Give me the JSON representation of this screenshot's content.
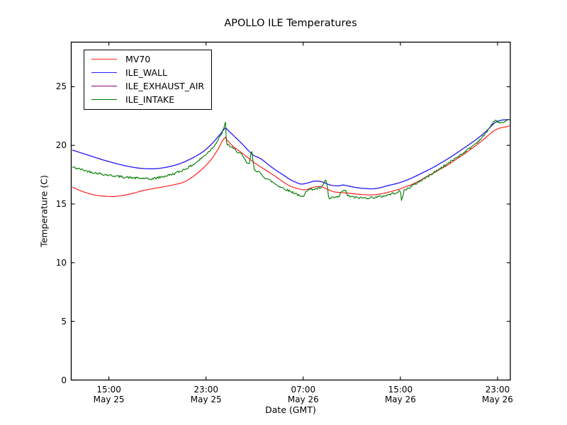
{
  "figure": {
    "background": "#ffffff",
    "frame_color": "#000000"
  },
  "chart_data": {
    "type": "line",
    "title": "APOLLO ILE Temperatures",
    "xlabel": "Date (GMT)",
    "ylabel": "Temperature (C)",
    "x_reference": "hours after May 25 12:00 GMT",
    "xlim_hours": [
      -0.1,
      36.05
    ],
    "ylim": [
      0,
      28.8
    ],
    "yticks": [
      0,
      5,
      10,
      15,
      20,
      25
    ],
    "xticks": [
      {
        "t": 3,
        "time": "15:00",
        "date": "May 25"
      },
      {
        "t": 11,
        "time": "23:00",
        "date": "May 25"
      },
      {
        "t": 19,
        "time": "07:00",
        "date": "May 26"
      },
      {
        "t": 27,
        "time": "15:00",
        "date": "May 26"
      },
      {
        "t": 35,
        "time": "23:00",
        "date": "May 26"
      }
    ],
    "grid": false,
    "legend_position": "upper left",
    "draw_order": [
      "ILE_EXHAUST_AIR",
      "MV70",
      "ILE_WALL",
      "ILE_INTAKE"
    ],
    "series": [
      {
        "name": "MV70",
        "color": "#ff2020",
        "noise": 0,
        "smooth": true,
        "points": [
          [
            0,
            16.45
          ],
          [
            0.7,
            16.12
          ],
          [
            1.4,
            15.88
          ],
          [
            2,
            15.74
          ],
          [
            2.6,
            15.67
          ],
          [
            3.2,
            15.64
          ],
          [
            3.8,
            15.68
          ],
          [
            4.4,
            15.78
          ],
          [
            5,
            15.92
          ],
          [
            5.7,
            16.12
          ],
          [
            6.4,
            16.27
          ],
          [
            7.1,
            16.4
          ],
          [
            7.8,
            16.53
          ],
          [
            8.5,
            16.68
          ],
          [
            9.2,
            16.88
          ],
          [
            9.8,
            17.25
          ],
          [
            10.4,
            17.72
          ],
          [
            11,
            18.3
          ],
          [
            11.5,
            18.9
          ],
          [
            12,
            19.7
          ],
          [
            12.3,
            20.3
          ],
          [
            12.6,
            20.7
          ],
          [
            12.72,
            20.45
          ],
          [
            13,
            20.15
          ],
          [
            13.3,
            19.85
          ],
          [
            13.9,
            19.4
          ],
          [
            14.45,
            18.95
          ],
          [
            15,
            18.5
          ],
          [
            15.6,
            18.1
          ],
          [
            16.2,
            17.7
          ],
          [
            16.8,
            17.3
          ],
          [
            17.4,
            16.85
          ],
          [
            17.9,
            16.55
          ],
          [
            18.6,
            16.3
          ],
          [
            19.2,
            16.22
          ],
          [
            19.9,
            16.45
          ],
          [
            20.5,
            16.48
          ],
          [
            21,
            16.25
          ],
          [
            21.5,
            16.05
          ],
          [
            22.1,
            15.98
          ],
          [
            22.7,
            15.93
          ],
          [
            23.3,
            15.86
          ],
          [
            24,
            15.8
          ],
          [
            24.7,
            15.78
          ],
          [
            25.3,
            15.85
          ],
          [
            25.9,
            15.98
          ],
          [
            26.7,
            16.2
          ],
          [
            27.3,
            16.42
          ],
          [
            27.9,
            16.65
          ],
          [
            28.5,
            16.95
          ],
          [
            29.1,
            17.3
          ],
          [
            29.7,
            17.63
          ],
          [
            30.3,
            17.98
          ],
          [
            30.9,
            18.33
          ],
          [
            31.5,
            18.75
          ],
          [
            32.1,
            19.15
          ],
          [
            32.7,
            19.6
          ],
          [
            33.3,
            20.05
          ],
          [
            33.9,
            20.55
          ],
          [
            34.4,
            21.0
          ],
          [
            34.8,
            21.3
          ],
          [
            35.2,
            21.48
          ],
          [
            35.6,
            21.56
          ],
          [
            36,
            21.65
          ]
        ]
      },
      {
        "name": "ILE_WALL",
        "color": "#2222ff",
        "noise": 0,
        "smooth": true,
        "points": [
          [
            0,
            19.6
          ],
          [
            0.6,
            19.4
          ],
          [
            1.2,
            19.2
          ],
          [
            1.8,
            19.0
          ],
          [
            2.4,
            18.8
          ],
          [
            3,
            18.62
          ],
          [
            3.6,
            18.45
          ],
          [
            4.2,
            18.3
          ],
          [
            4.8,
            18.17
          ],
          [
            5.4,
            18.07
          ],
          [
            6,
            18.02
          ],
          [
            6.6,
            18.0
          ],
          [
            7.2,
            18.05
          ],
          [
            7.8,
            18.15
          ],
          [
            8.4,
            18.3
          ],
          [
            9,
            18.5
          ],
          [
            9.6,
            18.78
          ],
          [
            10.2,
            19.1
          ],
          [
            10.8,
            19.5
          ],
          [
            11.3,
            19.95
          ],
          [
            11.8,
            20.5
          ],
          [
            12.2,
            21.0
          ],
          [
            12.6,
            21.5
          ],
          [
            12.75,
            21.35
          ],
          [
            13,
            21.1
          ],
          [
            13.3,
            20.8
          ],
          [
            13.9,
            20.2
          ],
          [
            14.45,
            19.6
          ],
          [
            14.9,
            19.15
          ],
          [
            15.2,
            19.02
          ],
          [
            15.6,
            18.8
          ],
          [
            16.2,
            18.3
          ],
          [
            16.8,
            17.85
          ],
          [
            17.4,
            17.45
          ],
          [
            17.9,
            17.1
          ],
          [
            18.4,
            16.85
          ],
          [
            18.85,
            16.7
          ],
          [
            19.3,
            16.78
          ],
          [
            19.9,
            16.95
          ],
          [
            20.4,
            16.93
          ],
          [
            20.9,
            16.75
          ],
          [
            21.3,
            16.6
          ],
          [
            21.9,
            16.55
          ],
          [
            22.3,
            16.62
          ],
          [
            22.8,
            16.52
          ],
          [
            23.4,
            16.4
          ],
          [
            24,
            16.33
          ],
          [
            24.7,
            16.3
          ],
          [
            25.3,
            16.38
          ],
          [
            25.9,
            16.55
          ],
          [
            26.7,
            16.75
          ],
          [
            27.3,
            16.95
          ],
          [
            27.9,
            17.2
          ],
          [
            28.5,
            17.5
          ],
          [
            29.1,
            17.8
          ],
          [
            29.7,
            18.12
          ],
          [
            30.3,
            18.48
          ],
          [
            30.9,
            18.85
          ],
          [
            31.5,
            19.25
          ],
          [
            32.1,
            19.68
          ],
          [
            32.7,
            20.1
          ],
          [
            33.3,
            20.55
          ],
          [
            33.9,
            21.05
          ],
          [
            34.4,
            21.55
          ],
          [
            34.8,
            21.95
          ],
          [
            35.2,
            22.12
          ],
          [
            35.6,
            22.18
          ],
          [
            36,
            22.2
          ]
        ]
      },
      {
        "name": "ILE_EXHAUST_AIR",
        "color": "#800080",
        "noise": 0,
        "smooth": true,
        "coincident_with": "ILE_WALL",
        "points": [
          [
            0,
            19.6
          ],
          [
            0.6,
            19.4
          ],
          [
            1.2,
            19.2
          ],
          [
            1.8,
            19.0
          ],
          [
            2.4,
            18.8
          ],
          [
            3,
            18.62
          ],
          [
            3.6,
            18.45
          ],
          [
            4.2,
            18.3
          ],
          [
            4.8,
            18.17
          ],
          [
            5.4,
            18.07
          ],
          [
            6,
            18.02
          ],
          [
            6.6,
            18.0
          ],
          [
            7.2,
            18.05
          ],
          [
            7.8,
            18.15
          ],
          [
            8.4,
            18.3
          ],
          [
            9,
            18.5
          ],
          [
            9.6,
            18.78
          ],
          [
            10.2,
            19.1
          ],
          [
            10.8,
            19.5
          ],
          [
            11.3,
            19.95
          ],
          [
            11.8,
            20.5
          ],
          [
            12.2,
            21.0
          ],
          [
            12.6,
            21.5
          ],
          [
            12.75,
            21.35
          ],
          [
            13,
            21.1
          ],
          [
            13.3,
            20.8
          ],
          [
            13.9,
            20.2
          ],
          [
            14.45,
            19.6
          ],
          [
            14.9,
            19.15
          ],
          [
            15.2,
            19.02
          ],
          [
            15.6,
            18.8
          ],
          [
            16.2,
            18.3
          ],
          [
            16.8,
            17.85
          ],
          [
            17.4,
            17.45
          ],
          [
            17.9,
            17.1
          ],
          [
            18.4,
            16.85
          ],
          [
            18.85,
            16.7
          ],
          [
            19.3,
            16.78
          ],
          [
            19.9,
            16.95
          ],
          [
            20.4,
            16.93
          ],
          [
            20.9,
            16.75
          ],
          [
            21.3,
            16.6
          ],
          [
            21.9,
            16.55
          ],
          [
            22.3,
            16.62
          ],
          [
            22.8,
            16.52
          ],
          [
            23.4,
            16.4
          ],
          [
            24,
            16.33
          ],
          [
            24.7,
            16.3
          ],
          [
            25.3,
            16.38
          ],
          [
            25.9,
            16.55
          ],
          [
            26.7,
            16.75
          ],
          [
            27.3,
            16.95
          ],
          [
            27.9,
            17.2
          ],
          [
            28.5,
            17.5
          ],
          [
            29.1,
            17.8
          ],
          [
            29.7,
            18.12
          ],
          [
            30.3,
            18.48
          ],
          [
            30.9,
            18.85
          ],
          [
            31.5,
            19.25
          ],
          [
            32.1,
            19.68
          ],
          [
            32.7,
            20.1
          ],
          [
            33.3,
            20.55
          ],
          [
            33.9,
            21.05
          ],
          [
            34.4,
            21.55
          ],
          [
            34.8,
            21.95
          ],
          [
            35.2,
            22.12
          ],
          [
            35.6,
            22.18
          ],
          [
            36,
            22.2
          ]
        ]
      },
      {
        "name": "ILE_INTAKE",
        "color": "#007a00",
        "noise": 0.1,
        "smooth": false,
        "points": [
          [
            0,
            18.15
          ],
          [
            0.6,
            17.98
          ],
          [
            1.2,
            17.82
          ],
          [
            1.8,
            17.68
          ],
          [
            2.4,
            17.56
          ],
          [
            3,
            17.46
          ],
          [
            3.6,
            17.38
          ],
          [
            4.2,
            17.3
          ],
          [
            4.8,
            17.25
          ],
          [
            5.4,
            17.2
          ],
          [
            6,
            17.18
          ],
          [
            6.3,
            17.1
          ],
          [
            6.7,
            17.18
          ],
          [
            7.2,
            17.28
          ],
          [
            7.8,
            17.42
          ],
          [
            8.4,
            17.6
          ],
          [
            9,
            17.85
          ],
          [
            9.6,
            18.15
          ],
          [
            10.2,
            18.55
          ],
          [
            10.8,
            19.05
          ],
          [
            11.3,
            19.55
          ],
          [
            11.8,
            20.15
          ],
          [
            12.2,
            20.8
          ],
          [
            12.45,
            21.4
          ],
          [
            12.62,
            21.98
          ],
          [
            12.68,
            20.15
          ],
          [
            13,
            19.9
          ],
          [
            13.3,
            19.68
          ],
          [
            13.9,
            19.25
          ],
          [
            14.3,
            18.6
          ],
          [
            14.55,
            18.35
          ],
          [
            14.75,
            19.6
          ],
          [
            14.95,
            18.0
          ],
          [
            15.35,
            17.7
          ],
          [
            15.8,
            17.3
          ],
          [
            16.2,
            17.05
          ],
          [
            16.8,
            16.65
          ],
          [
            17.35,
            16.35
          ],
          [
            17.9,
            16.1
          ],
          [
            18.4,
            15.9
          ],
          [
            18.8,
            15.6
          ],
          [
            19.05,
            15.65
          ],
          [
            19.2,
            16.15
          ],
          [
            19.6,
            16.25
          ],
          [
            20.1,
            16.3
          ],
          [
            20.55,
            16.4
          ],
          [
            20.85,
            17.1
          ],
          [
            21.0,
            16.4
          ],
          [
            21.1,
            15.4
          ],
          [
            21.5,
            15.55
          ],
          [
            21.95,
            15.6
          ],
          [
            22.15,
            16.1
          ],
          [
            22.5,
            16.12
          ],
          [
            22.7,
            15.68
          ],
          [
            23.3,
            15.55
          ],
          [
            24,
            15.52
          ],
          [
            24.7,
            15.55
          ],
          [
            25.3,
            15.62
          ],
          [
            25.9,
            15.75
          ],
          [
            26.7,
            16.0
          ],
          [
            27.0,
            16.1
          ],
          [
            27.1,
            15.25
          ],
          [
            27.3,
            16.15
          ],
          [
            27.9,
            16.5
          ],
          [
            28.5,
            16.88
          ],
          [
            29.1,
            17.25
          ],
          [
            29.7,
            17.65
          ],
          [
            30.3,
            18.05
          ],
          [
            30.9,
            18.45
          ],
          [
            31.5,
            18.88
          ],
          [
            32.1,
            19.3
          ],
          [
            32.7,
            19.75
          ],
          [
            33.3,
            20.25
          ],
          [
            33.9,
            20.85
          ],
          [
            34.3,
            21.45
          ],
          [
            34.65,
            21.98
          ],
          [
            34.9,
            22.1
          ],
          [
            35.2,
            21.95
          ],
          [
            35.5,
            21.92
          ],
          [
            35.75,
            22.05
          ],
          [
            36,
            22.15
          ]
        ]
      }
    ]
  }
}
